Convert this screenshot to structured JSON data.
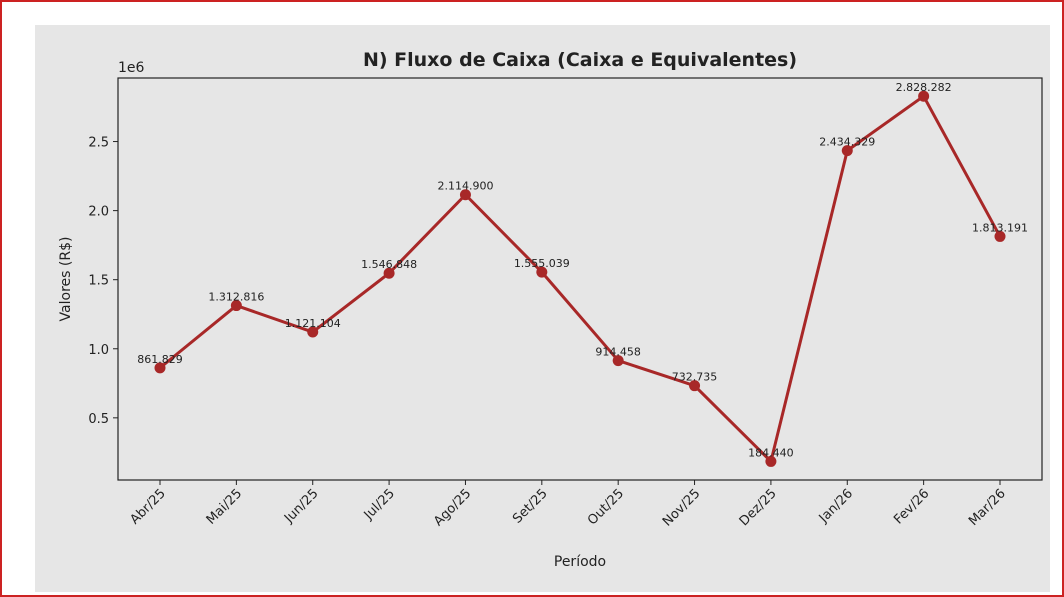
{
  "chart_data": {
    "type": "line",
    "title": "N) Fluxo de Caixa (Caixa e Equivalentes)",
    "xlabel": "Período",
    "ylabel": "Valores (R$)",
    "y_offset_label": "1e6",
    "categories": [
      "Abr/25",
      "Mai/25",
      "Jun/25",
      "Jul/25",
      "Ago/25",
      "Set/25",
      "Out/25",
      "Nov/25",
      "Dez/25",
      "Jan/26",
      "Fev/26",
      "Mar/26"
    ],
    "series": [
      {
        "name": "Caixa e Equivalentes",
        "color": "#a82828",
        "values": [
          861829,
          1312816,
          1121104,
          1546848,
          2114900,
          1555039,
          914458,
          732735,
          184440,
          2434329,
          2828282,
          1813191
        ],
        "value_labels": [
          "861.829",
          "1.312.816",
          "1.121.104",
          "1.546.848",
          "2.114.900",
          "1.555.039",
          "914.458",
          "732.735",
          "184.440",
          "2.434.329",
          "2.828.282",
          "1.813.191"
        ]
      }
    ],
    "ylim": [
      50000,
      2960000
    ],
    "yticks": [
      {
        "value": 500000,
        "label": "0.5"
      },
      {
        "value": 1000000,
        "label": "1.0"
      },
      {
        "value": 1500000,
        "label": "1.5"
      },
      {
        "value": 2000000,
        "label": "2.0"
      },
      {
        "value": 2500000,
        "label": "2.5"
      }
    ],
    "grid": false
  }
}
